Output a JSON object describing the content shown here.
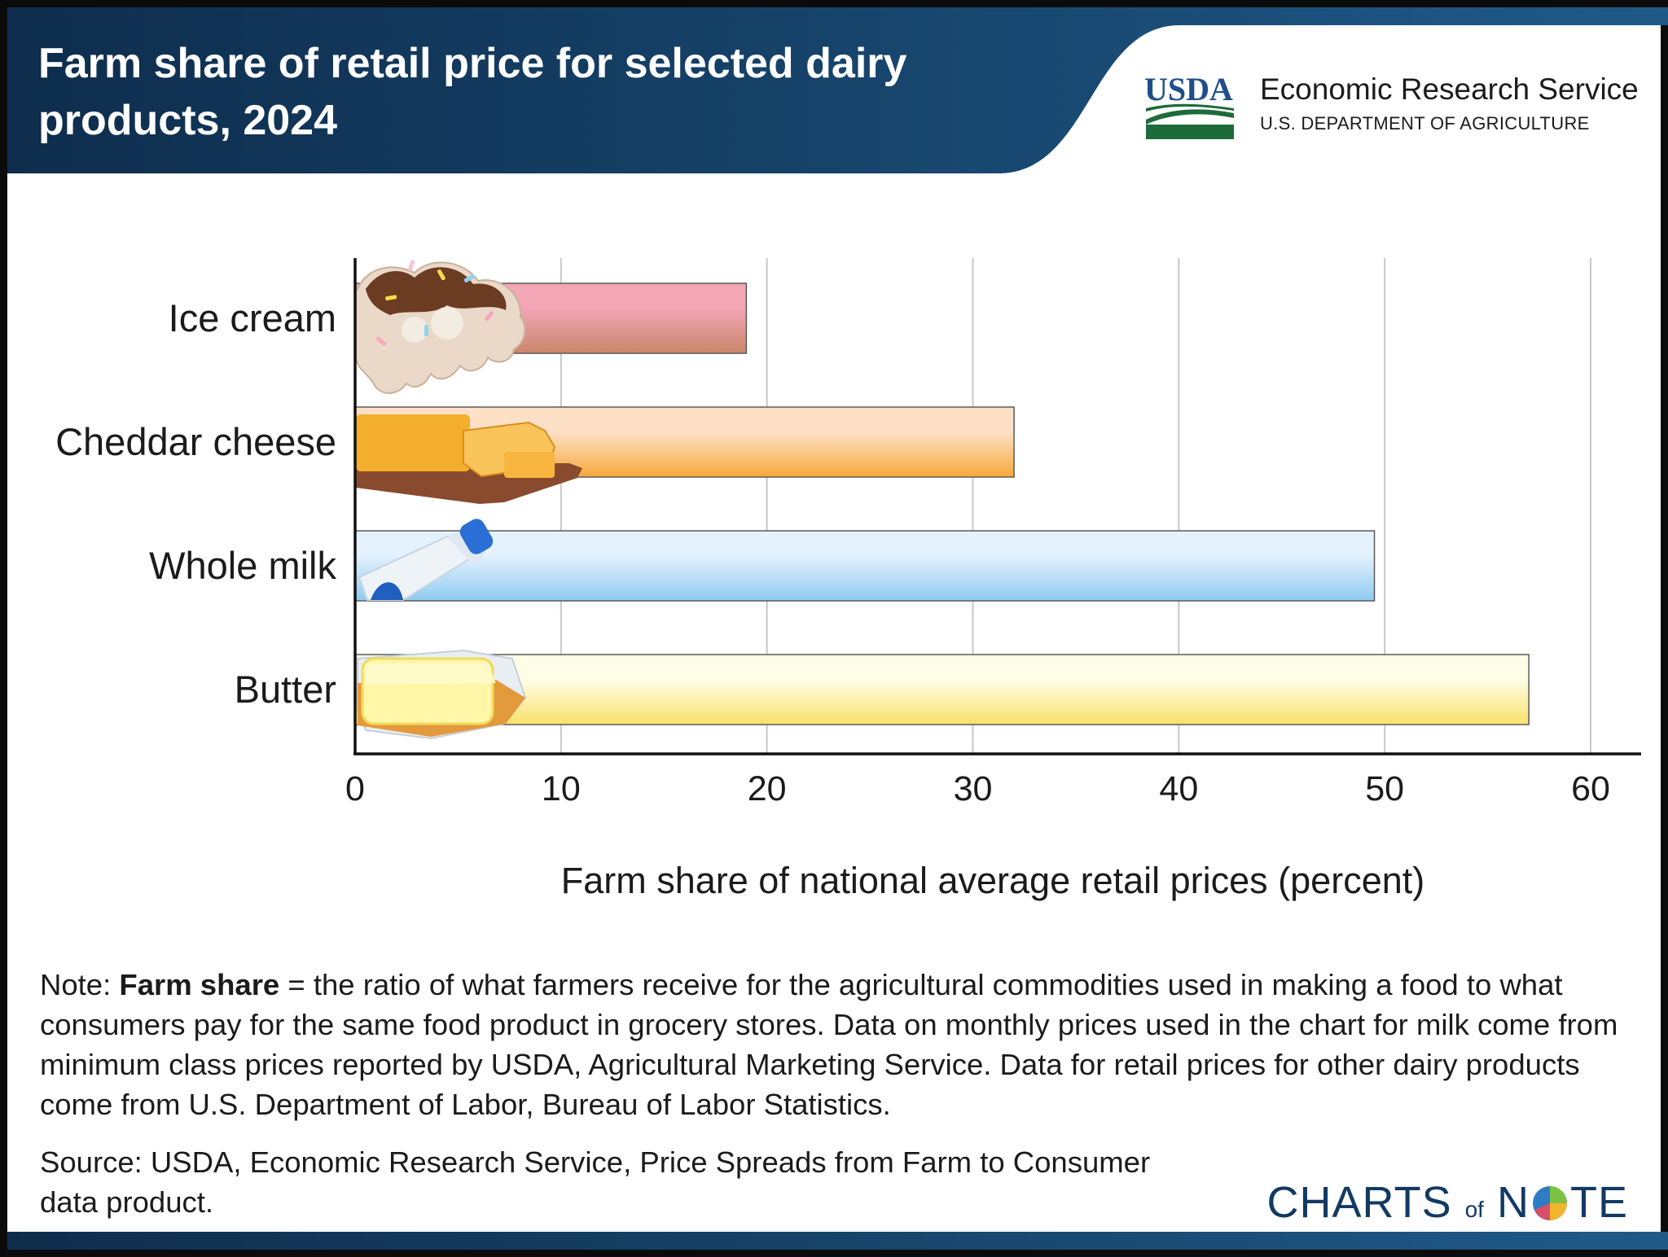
{
  "header": {
    "title": "Farm share of retail price for selected dairy products, 2024",
    "agency_abbrev": "USDA",
    "agency_name": "Economic Research Service",
    "department": "U.S. DEPARTMENT OF AGRICULTURE",
    "colors": {
      "banner_dark": "#0e2d4d",
      "banner_light": "#1f5a88",
      "usda_blue": "#1f4f8a",
      "usda_green": "#1d6b3a"
    }
  },
  "chart_data": {
    "type": "bar",
    "orientation": "horizontal",
    "categories": [
      "Ice cream",
      "Cheddar cheese",
      "Whole milk",
      "Butter"
    ],
    "values": [
      19,
      32,
      49.5,
      57
    ],
    "xlabel": "Farm share of national average retail prices (percent)",
    "xlim": [
      0,
      62
    ],
    "xticks": [
      0,
      10,
      20,
      30,
      40,
      50,
      60
    ],
    "grid": "vertical",
    "legend": "none",
    "bar_colors": [
      {
        "top": "#f2a6b6",
        "bottom": "#c9876a"
      },
      {
        "top": "#fde0c6",
        "bottom": "#f6a93a"
      },
      {
        "top": "#e3f2fd",
        "bottom": "#8fcbf0"
      },
      {
        "top": "#fffde8",
        "bottom": "#f8e26a"
      }
    ],
    "icons": [
      "ice-cream-icon",
      "cheese-icon",
      "milk-bottle-icon",
      "butter-icon"
    ]
  },
  "footer": {
    "note_label": "Note:",
    "note_term": "Farm share",
    "note_text": "= the ratio of what farmers receive for the agricultural commodities used in making a food to what consumers pay for the same food product in grocery stores. Data on monthly prices used in the chart for milk come from minimum class prices reported by USDA, Agricultural Marketing Service. Data for retail prices for other dairy products come from U.S. Department of Labor, Bureau of Labor Statistics.",
    "source": "Source: USDA, Economic Research Service, Price Spreads from Farm to Consumer data product.",
    "brand_part1": "CHARTS",
    "brand_of": "of",
    "brand_part2_n": "N",
    "brand_part2_te": "TE"
  }
}
